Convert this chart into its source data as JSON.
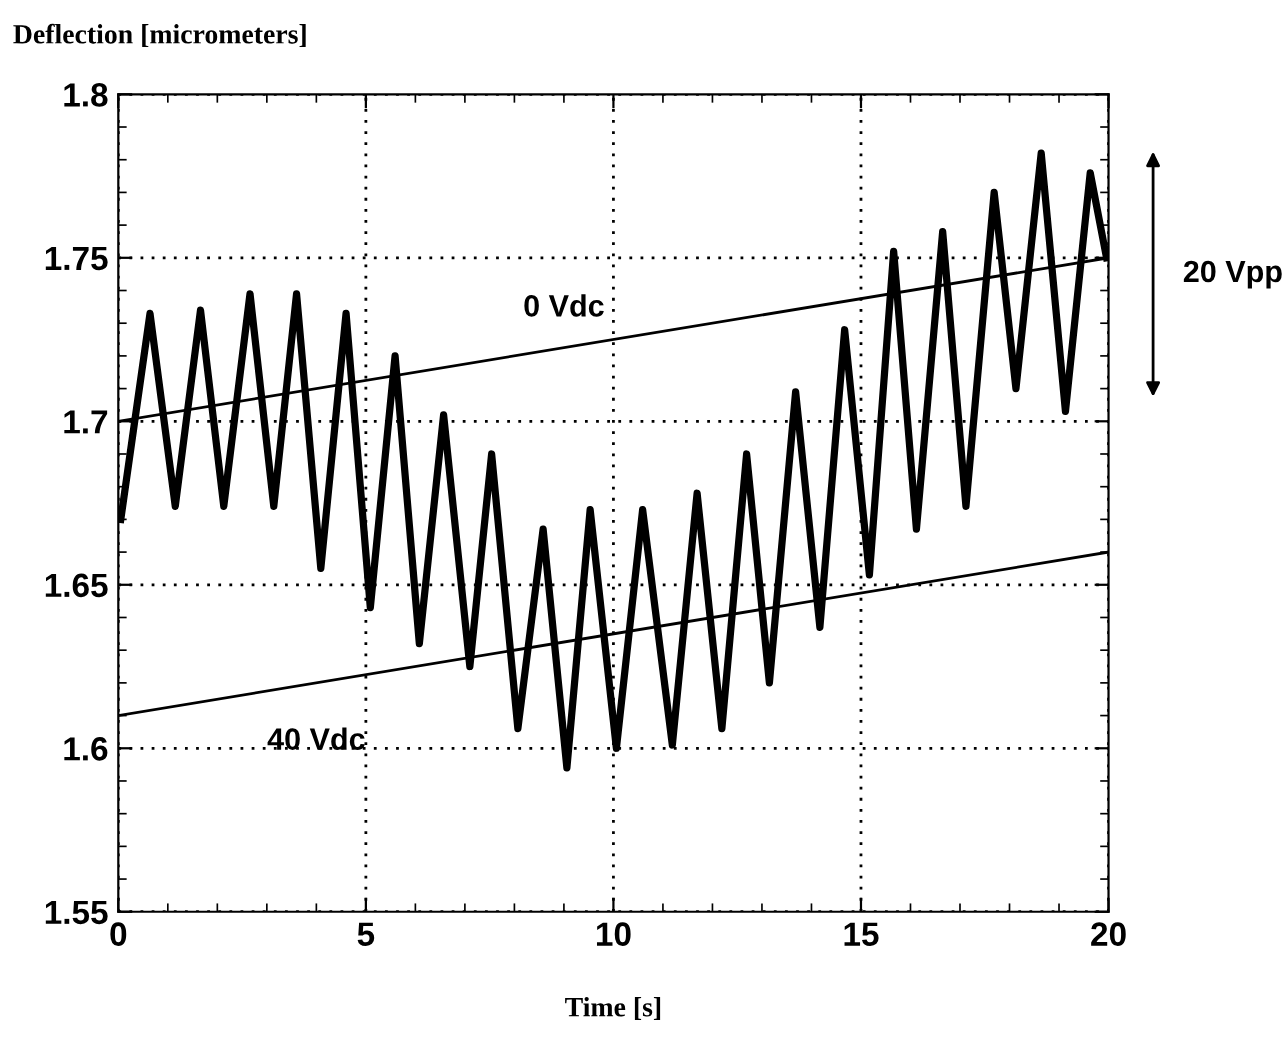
{
  "chart_data": {
    "type": "line",
    "ylabel": "Deflection [micrometers]",
    "xlabel": "Time [s]",
    "series": [
      {
        "color": "#000000",
        "x": [
          0.05,
          0.64,
          1.15,
          1.66,
          2.13,
          2.66,
          3.14,
          3.6,
          4.09,
          4.6,
          5.09,
          5.59,
          6.08,
          6.57,
          7.1,
          7.54,
          8.07,
          8.58,
          9.06,
          9.53,
          10.06,
          10.59,
          11.19,
          11.69,
          12.19,
          12.69,
          13.15,
          13.68,
          14.17,
          14.67,
          15.17,
          15.66,
          16.12,
          16.65,
          17.12,
          17.69,
          18.13,
          18.64,
          19.13,
          19.63,
          19.96
        ],
        "values": [
          1.67,
          1.733,
          1.674,
          1.734,
          1.674,
          1.739,
          1.674,
          1.739,
          1.655,
          1.733,
          1.643,
          1.72,
          1.632,
          1.702,
          1.625,
          1.69,
          1.606,
          1.667,
          1.594,
          1.673,
          1.6,
          1.673,
          1.601,
          1.678,
          1.606,
          1.69,
          1.62,
          1.709,
          1.637,
          1.728,
          1.653,
          1.752,
          1.667,
          1.758,
          1.674,
          1.77,
          1.71,
          1.782,
          1.703,
          1.776,
          1.75
        ]
      },
      {
        "name": "0 Vdc",
        "color": "#000000",
        "x": [
          0,
          20
        ],
        "values": [
          1.7,
          1.75
        ]
      },
      {
        "name": "40 Vdc",
        "color": "#000000",
        "x": [
          0,
          20
        ],
        "values": [
          1.61,
          1.66
        ]
      }
    ],
    "xlim": [
      0,
      20
    ],
    "xticks": [
      0,
      5,
      10,
      15,
      20
    ],
    "ylim": [
      1.55,
      1.8
    ],
    "yticks": [
      1.55,
      1.6,
      1.65,
      1.7,
      1.75,
      1.8
    ],
    "grid": true,
    "legend": false,
    "marker": "none",
    "line_style": "solid",
    "annotations": [
      "20 Vpp"
    ]
  }
}
